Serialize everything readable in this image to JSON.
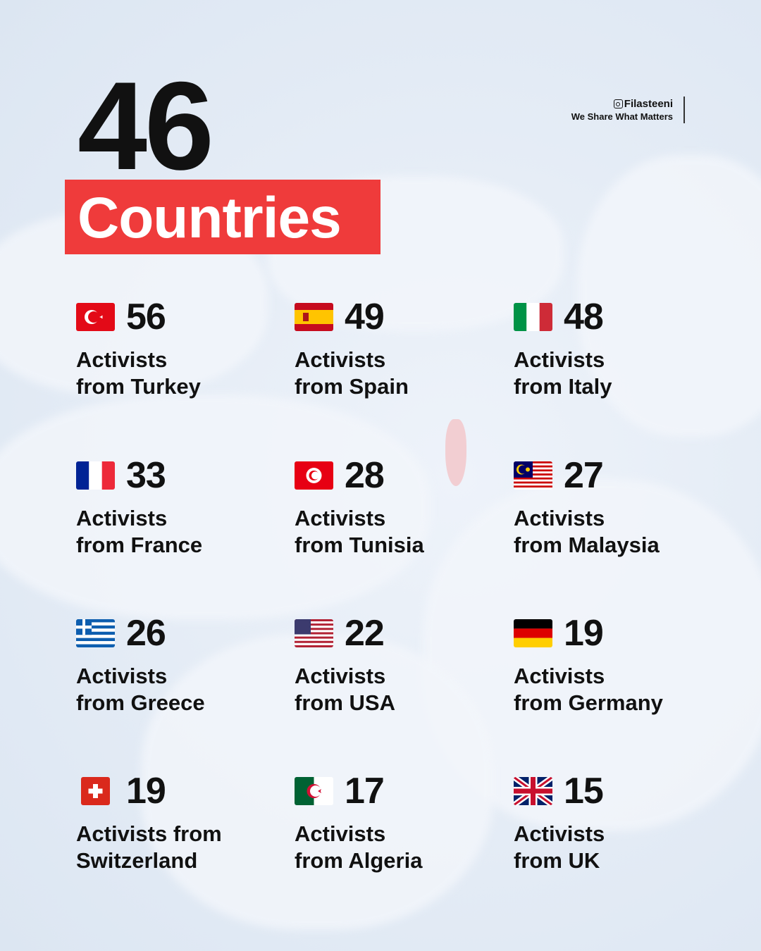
{
  "headline": {
    "number": "46",
    "label": "Countries"
  },
  "brand": {
    "handle": "Filasteeni",
    "tagline": "We Share What Matters",
    "icon": "instagram-icon"
  },
  "colors": {
    "banner": "#ef3b3b",
    "text": "#111111"
  },
  "countries": [
    {
      "flag": "turkey",
      "count": "56",
      "label": "Activists\nfrom Turkey"
    },
    {
      "flag": "spain",
      "count": "49",
      "label": "Activists\nfrom Spain"
    },
    {
      "flag": "italy",
      "count": "48",
      "label": "Activists\nfrom Italy"
    },
    {
      "flag": "france",
      "count": "33",
      "label": "Activists\nfrom France"
    },
    {
      "flag": "tunisia",
      "count": "28",
      "label": "Activists\nfrom Tunisia"
    },
    {
      "flag": "malaysia",
      "count": "27",
      "label": "Activists\nfrom Malaysia"
    },
    {
      "flag": "greece",
      "count": "26",
      "label": "Activists\nfrom Greece"
    },
    {
      "flag": "usa",
      "count": "22",
      "label": "Activists\nfrom USA"
    },
    {
      "flag": "germany",
      "count": "19",
      "label": "Activists\nfrom Germany"
    },
    {
      "flag": "switzerland",
      "count": "19",
      "label": "Activists from\nSwitzerland"
    },
    {
      "flag": "algeria",
      "count": "17",
      "label": "Activists\nfrom Algeria"
    },
    {
      "flag": "uk",
      "count": "15",
      "label": "Activists\nfrom UK"
    }
  ]
}
